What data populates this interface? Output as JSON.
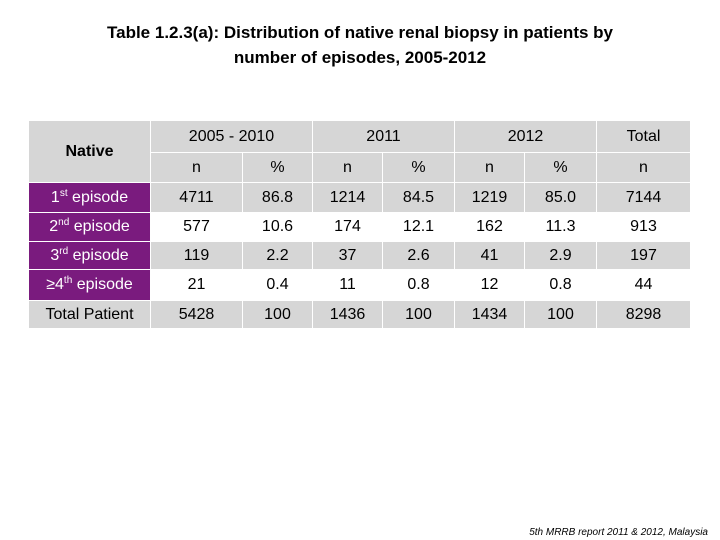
{
  "title": {
    "line1": "Table 1.2.3(a): Distribution of native renal biopsy in patients by",
    "line2": "number of episodes, 2005-2012"
  },
  "table": {
    "row_header": "Native",
    "groups": [
      "2005 - 2010",
      "2011",
      "2012",
      "Total"
    ],
    "subheaders": [
      "n",
      "%",
      "n",
      "%",
      "n",
      "%",
      "n"
    ],
    "rows": [
      {
        "num": "1",
        "sup": "st",
        "suffix": " episode",
        "cells": [
          "4711",
          "86.8",
          "1214",
          "84.5",
          "1219",
          "85.0",
          "7144"
        ]
      },
      {
        "num": "2",
        "sup": "nd",
        "suffix": " episode",
        "cells": [
          "577",
          "10.6",
          "174",
          "12.1",
          "162",
          "11.3",
          "913"
        ]
      },
      {
        "num": "3",
        "sup": "rd",
        "suffix": " episode",
        "cells": [
          "119",
          "2.2",
          "37",
          "2.6",
          "41",
          "2.9",
          "197"
        ]
      },
      {
        "num": "≥4",
        "sup": "th",
        "suffix": " episode",
        "cells": [
          "21",
          "0.4",
          "11",
          "0.8",
          "12",
          "0.8",
          "44"
        ]
      }
    ],
    "total_row": {
      "label": "Total Patient",
      "cells": [
        "5428",
        "100",
        "1436",
        "100",
        "1434",
        "100",
        "8298"
      ]
    }
  },
  "footer": {
    "sup": "5th",
    "text": " MRRB report 2011 & 2012, Malaysia"
  },
  "colors": {
    "purple": "#7a1b7e",
    "gray": "#d6d6d6",
    "white": "#ffffff"
  }
}
